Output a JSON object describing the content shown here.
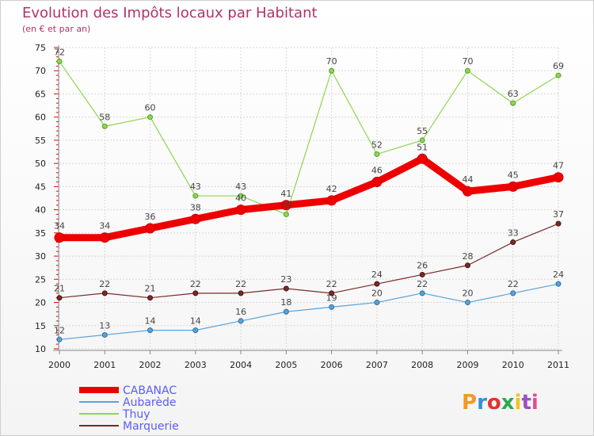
{
  "chart_data": {
    "type": "line",
    "title": "Evolution des Impôts locaux par Habitant",
    "subtitle": "(en € et par an)",
    "xlabel": "",
    "ylabel": "",
    "ylim": [
      10,
      75
    ],
    "yticks": [
      10,
      15,
      20,
      25,
      30,
      35,
      40,
      45,
      50,
      55,
      60,
      65,
      70,
      75
    ],
    "grid": true,
    "legend_position": "bottom-left",
    "categories": [
      "2000",
      "2001",
      "2002",
      "2003",
      "2004",
      "2005",
      "2006",
      "2007",
      "2008",
      "2009",
      "2010",
      "2011"
    ],
    "series": [
      {
        "name": "Thuy",
        "color": "#8ed64c",
        "values": [
          72,
          58,
          60,
          43,
          43,
          39,
          70,
          52,
          55,
          70,
          63,
          69
        ]
      },
      {
        "name": "Aubarède",
        "color": "#5aa3d9",
        "values": [
          12,
          13,
          14,
          14,
          16,
          18,
          19,
          20,
          22,
          20,
          22,
          24
        ]
      },
      {
        "name": "Marquerie",
        "color": "#7a2a2a",
        "values": [
          21,
          22,
          21,
          22,
          22,
          23,
          22,
          24,
          26,
          28,
          33,
          37
        ]
      },
      {
        "name": "CABANAC",
        "color": "#ee0000",
        "values": [
          34,
          34,
          36,
          38,
          40,
          41,
          42,
          46,
          51,
          44,
          45,
          47
        ]
      }
    ],
    "legend_order": [
      "CABANAC",
      "Aubarède",
      "Thuy",
      "Marquerie"
    ],
    "brand": "Proxiti"
  }
}
